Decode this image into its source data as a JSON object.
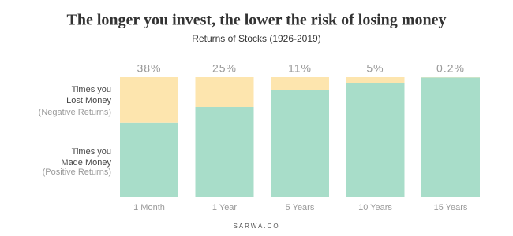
{
  "chart_data": {
    "type": "stacked-bar",
    "title": "The longer you invest, the lower the risk of losing money",
    "subtitle": "Returns of Stocks (1926-2019)",
    "categories": [
      "1 Month",
      "1 Year",
      "5 Years",
      "10 Years",
      "15 Years"
    ],
    "series": [
      {
        "name": "Times you Made Money",
        "note": "(Positive Returns)",
        "color": "#a8ddc9",
        "values": [
          62,
          75,
          89,
          95,
          99.8
        ]
      },
      {
        "name": "Times you Lost Money",
        "note": "(Negative Returns)",
        "color": "#fde5ae",
        "values": [
          38,
          25,
          11,
          5,
          0.2
        ],
        "value_labels": [
          "38%",
          "25%",
          "11%",
          "5%",
          "0.2%"
        ]
      }
    ],
    "ylim": [
      0,
      100
    ],
    "footer": "SARWA.CO"
  }
}
